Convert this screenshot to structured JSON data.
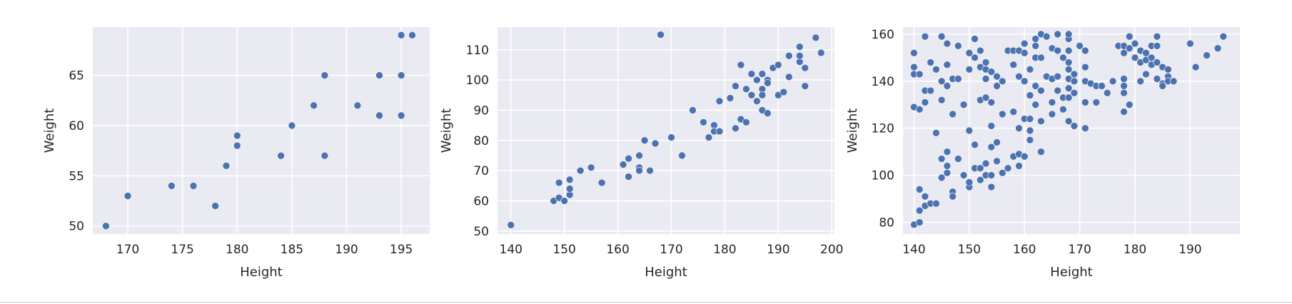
{
  "style": {
    "plot_background": "#eaeaf2",
    "grid_color": "#ffffff",
    "marker_color": "#4c72b0",
    "text_color": "#262626"
  },
  "chart_data": [
    {
      "type": "scatter",
      "title": "",
      "xlabel": "Height",
      "ylabel": "Weight",
      "grid": true,
      "xlim": [
        166.8,
        197.6
      ],
      "ylim": [
        49.2,
        69.8
      ],
      "xticks": [
        170,
        175,
        180,
        185,
        190,
        195
      ],
      "yticks": [
        50,
        55,
        60,
        65
      ],
      "series": [
        {
          "points": [
            [
              168,
              50
            ],
            [
              170,
              53
            ],
            [
              174,
              54
            ],
            [
              176,
              54
            ],
            [
              178,
              52
            ],
            [
              179,
              56
            ],
            [
              180,
              59
            ],
            [
              180,
              58
            ],
            [
              184,
              57
            ],
            [
              185,
              60
            ],
            [
              187,
              62
            ],
            [
              188,
              65
            ],
            [
              188,
              57
            ],
            [
              191,
              62
            ],
            [
              193,
              65
            ],
            [
              193,
              61
            ],
            [
              195,
              69
            ],
            [
              195,
              65
            ],
            [
              195,
              61
            ],
            [
              196,
              69
            ]
          ]
        }
      ]
    },
    {
      "type": "scatter",
      "title": "",
      "xlabel": "Height",
      "ylabel": "Weight",
      "grid": true,
      "xlim": [
        137.5,
        200.5
      ],
      "ylim": [
        49,
        117.5
      ],
      "xticks": [
        140,
        150,
        160,
        170,
        180,
        190,
        200
      ],
      "yticks": [
        50,
        60,
        70,
        80,
        90,
        100,
        110
      ],
      "series": [
        {
          "points": [
            [
              140,
              52
            ],
            [
              148,
              60
            ],
            [
              149,
              61
            ],
            [
              150,
              60
            ],
            [
              149,
              66
            ],
            [
              151,
              67
            ],
            [
              151,
              62
            ],
            [
              151,
              64
            ],
            [
              153,
              70
            ],
            [
              155,
              71
            ],
            [
              157,
              66
            ],
            [
              161,
              72
            ],
            [
              162,
              68
            ],
            [
              162,
              74
            ],
            [
              164,
              75
            ],
            [
              164,
              71
            ],
            [
              164,
              70
            ],
            [
              165,
              80
            ],
            [
              166,
              70
            ],
            [
              167,
              79
            ],
            [
              168,
              115
            ],
            [
              170,
              81
            ],
            [
              172,
              75
            ],
            [
              174,
              90
            ],
            [
              176,
              86
            ],
            [
              177,
              81
            ],
            [
              178,
              85
            ],
            [
              178,
              83
            ],
            [
              179,
              83
            ],
            [
              179,
              93
            ],
            [
              181,
              94
            ],
            [
              182,
              84
            ],
            [
              182,
              98
            ],
            [
              183,
              105
            ],
            [
              183,
              87
            ],
            [
              184,
              86
            ],
            [
              184,
              97
            ],
            [
              185,
              95
            ],
            [
              185,
              102
            ],
            [
              186,
              93
            ],
            [
              186,
              100
            ],
            [
              187,
              102
            ],
            [
              187,
              97
            ],
            [
              187,
              95
            ],
            [
              187,
              90
            ],
            [
              188,
              89
            ],
            [
              188,
              100
            ],
            [
              188,
              99
            ],
            [
              189,
              104
            ],
            [
              190,
              105
            ],
            [
              190,
              95
            ],
            [
              191,
              96
            ],
            [
              192,
              101
            ],
            [
              192,
              108
            ],
            [
              194,
              111
            ],
            [
              194,
              106
            ],
            [
              194,
              108
            ],
            [
              195,
              104
            ],
            [
              195,
              98
            ],
            [
              197,
              114
            ],
            [
              198,
              109
            ]
          ]
        }
      ]
    },
    {
      "type": "scatter",
      "title": "",
      "xlabel": "Height",
      "ylabel": "Weight",
      "grid": true,
      "xlim": [
        138,
        199
      ],
      "ylim": [
        75,
        163
      ],
      "xticks": [
        140,
        150,
        160,
        170,
        180,
        190
      ],
      "yticks": [
        80,
        100,
        120,
        140,
        160
      ],
      "series": [
        {
          "points": [
            [
              140,
              79
            ],
            [
              141,
              80
            ],
            [
              141,
              85
            ],
            [
              141,
              94
            ],
            [
              142,
              87
            ],
            [
              142,
              91
            ],
            [
              143,
              88
            ],
            [
              144,
              88
            ],
            [
              145,
              99
            ],
            [
              145,
              107
            ],
            [
              146,
              101
            ],
            [
              146,
              104
            ],
            [
              146,
              110
            ],
            [
              147,
              93
            ],
            [
              147,
              91
            ],
            [
              148,
              107
            ],
            [
              149,
              100
            ],
            [
              150,
              95
            ],
            [
              150,
              97
            ],
            [
              151,
              103
            ],
            [
              151,
              113
            ],
            [
              152,
              98
            ],
            [
              152,
              103
            ],
            [
              153,
              100
            ],
            [
              153,
              105
            ],
            [
              154,
              95
            ],
            [
              154,
              100
            ],
            [
              154,
              112
            ],
            [
              155,
              106
            ],
            [
              156,
              101
            ],
            [
              157,
              103
            ],
            [
              158,
              108
            ],
            [
              159,
              104
            ],
            [
              159,
              109
            ],
            [
              160,
              108
            ],
            [
              161,
              115
            ],
            [
              163,
              110
            ],
            [
              140,
              143
            ],
            [
              140,
              146
            ],
            [
              140,
              152
            ],
            [
              140,
              129
            ],
            [
              141,
              143
            ],
            [
              141,
              128
            ],
            [
              142,
              136
            ],
            [
              142,
              131
            ],
            [
              143,
              136
            ],
            [
              142,
              159
            ],
            [
              143,
              148
            ],
            [
              144,
              118
            ],
            [
              144,
              145
            ],
            [
              145,
              140
            ],
            [
              145,
              132
            ],
            [
              145,
              159
            ],
            [
              146,
              138
            ],
            [
              146,
              147
            ],
            [
              146,
              156
            ],
            [
              147,
              141
            ],
            [
              147,
              126
            ],
            [
              148,
              155
            ],
            [
              148,
              141
            ],
            [
              149,
              130
            ],
            [
              150,
              145
            ],
            [
              150,
              152
            ],
            [
              150,
              119
            ],
            [
              151,
              158
            ],
            [
              151,
              150
            ],
            [
              151,
              113
            ],
            [
              152,
              146
            ],
            [
              152,
              153
            ],
            [
              152,
              132
            ],
            [
              153,
              133
            ],
            [
              153,
              145
            ],
            [
              153,
              148
            ],
            [
              153,
              141
            ],
            [
              154,
              144
            ],
            [
              154,
              131
            ],
            [
              154,
              121
            ],
            [
              155,
              142
            ],
            [
              155,
              138
            ],
            [
              155,
              114
            ],
            [
              156,
              126
            ],
            [
              156,
              140
            ],
            [
              157,
              153
            ],
            [
              158,
              153
            ],
            [
              158,
              147
            ],
            [
              158,
              127
            ],
            [
              159,
              153
            ],
            [
              159,
              142
            ],
            [
              159,
              120
            ],
            [
              160,
              156
            ],
            [
              160,
              152
            ],
            [
              160,
              124
            ],
            [
              160,
              140
            ],
            [
              161,
              145
            ],
            [
              161,
              134
            ],
            [
              161,
              119
            ],
            [
              161,
              124
            ],
            [
              162,
              155
            ],
            [
              162,
              150
            ],
            [
              162,
              138
            ],
            [
              162,
              130
            ],
            [
              162,
              158
            ],
            [
              163,
              160
            ],
            [
              163,
              150
            ],
            [
              163,
              136
            ],
            [
              163,
              123
            ],
            [
              164,
              159
            ],
            [
              164,
              142
            ],
            [
              165,
              154
            ],
            [
              165,
              141
            ],
            [
              165,
              126
            ],
            [
              165,
              131
            ],
            [
              166,
              160
            ],
            [
              166,
              153
            ],
            [
              166,
              142
            ],
            [
              166,
              136
            ],
            [
              167,
              150
            ],
            [
              167,
              133
            ],
            [
              167,
              128
            ],
            [
              168,
              158
            ],
            [
              168,
              153
            ],
            [
              168,
              148
            ],
            [
              168,
              145
            ],
            [
              168,
              141
            ],
            [
              168,
              137
            ],
            [
              168,
              133
            ],
            [
              168,
              160
            ],
            [
              168,
              123
            ],
            [
              169,
              121
            ],
            [
              169,
              135
            ],
            [
              169,
              140
            ],
            [
              169,
              143
            ],
            [
              170,
              155
            ],
            [
              171,
              153
            ],
            [
              171,
              146
            ],
            [
              171,
              140
            ],
            [
              171,
              131
            ],
            [
              171,
              120
            ],
            [
              172,
              139
            ],
            [
              173,
              131
            ],
            [
              173,
              138
            ],
            [
              174,
              138
            ],
            [
              175,
              135
            ],
            [
              176,
              140
            ],
            [
              177,
              155
            ],
            [
              178,
              155
            ],
            [
              178,
              152
            ],
            [
              178,
              141
            ],
            [
              178,
              138
            ],
            [
              178,
              135
            ],
            [
              178,
              127
            ],
            [
              179,
              159
            ],
            [
              179,
              154
            ],
            [
              179,
              130
            ],
            [
              180,
              156
            ],
            [
              180,
              150
            ],
            [
              181,
              148
            ],
            [
              181,
              153
            ],
            [
              181,
              140
            ],
            [
              182,
              152
            ],
            [
              182,
              149
            ],
            [
              182,
              143
            ],
            [
              183,
              155
            ],
            [
              183,
              150
            ],
            [
              183,
              147
            ],
            [
              184,
              159
            ],
            [
              184,
              155
            ],
            [
              184,
              148
            ],
            [
              184,
              141
            ],
            [
              185,
              146
            ],
            [
              185,
              139
            ],
            [
              185,
              138
            ],
            [
              186,
              145
            ],
            [
              186,
              142
            ],
            [
              186,
              140
            ],
            [
              187,
              140
            ],
            [
              190,
              156
            ],
            [
              191,
              146
            ],
            [
              193,
              151
            ],
            [
              195,
              154
            ],
            [
              196,
              159
            ]
          ]
        }
      ]
    }
  ]
}
